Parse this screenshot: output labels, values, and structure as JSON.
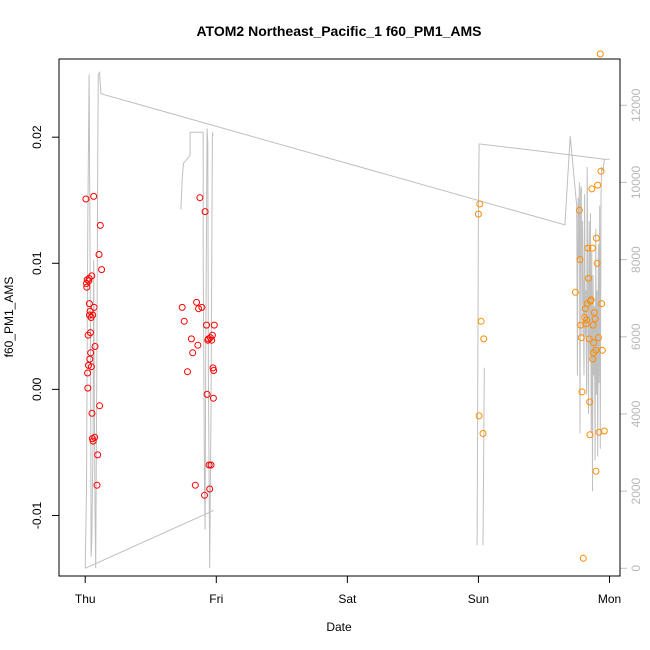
{
  "chart_data": {
    "type": "scatter",
    "title": "ATOM2 Northeast_Pacific_1 f60_PM1_AMS",
    "xlabel": "Date",
    "ylabel": "f60_PM1_AMS",
    "x_ticks": [
      {
        "label": "Thu",
        "day": 0
      },
      {
        "label": "Fri",
        "day": 1
      },
      {
        "label": "Sat",
        "day": 2
      },
      {
        "label": "Sun",
        "day": 3
      },
      {
        "label": "Mon",
        "day": 4
      }
    ],
    "xlim": [
      -0.2,
      4.08
    ],
    "ylim": [
      -0.0148,
      0.0262
    ],
    "y_ticks": [
      -0.01,
      0.0,
      0.01,
      0.02
    ],
    "y_tick_labels": [
      "-0.01",
      "0.00",
      "0.01",
      "0.02"
    ],
    "y2lim": [
      -200,
      13200
    ],
    "y2_ticks": [
      0,
      2000,
      4000,
      6000,
      8000,
      10000,
      12000
    ],
    "y2_tick_labels": [
      "0",
      "2000",
      "4000",
      "6000",
      "8000",
      "10000",
      "12000"
    ],
    "colors": {
      "series_red": "#ff0000",
      "series_orange": "#ff8c00",
      "line": "#bfbfbf",
      "right_axis": "#c0c0c0",
      "axis": "#000000"
    },
    "series": [
      {
        "color_key": "series_red",
        "points": [
          [
            0.005,
            0.0151
          ],
          [
            0.01,
            0.0084
          ],
          [
            0.012,
            0.0081
          ],
          [
            0.015,
            0.0087
          ],
          [
            0.018,
            0.0013
          ],
          [
            0.02,
            0.0001
          ],
          [
            0.022,
            0.0043
          ],
          [
            0.025,
            0.0019
          ],
          [
            0.027,
            0.0086
          ],
          [
            0.03,
            0.0088
          ],
          [
            0.032,
            0.0068
          ],
          [
            0.033,
            0.0059
          ],
          [
            0.035,
            0.0024
          ],
          [
            0.037,
            0.0062
          ],
          [
            0.04,
            0.0045
          ],
          [
            0.042,
            0.0029
          ],
          [
            0.045,
            0.0057
          ],
          [
            0.047,
            0.0018
          ],
          [
            0.05,
            0.009
          ],
          [
            0.052,
            -0.0019
          ],
          [
            0.055,
            -0.0039
          ],
          [
            0.057,
            0.0059
          ],
          [
            0.06,
            -0.0041
          ],
          [
            0.065,
            0.0153
          ],
          [
            0.068,
            0.0065
          ],
          [
            0.072,
            -0.0038
          ],
          [
            0.075,
            0.0034
          ],
          [
            0.09,
            -0.0076
          ],
          [
            0.095,
            -0.0052
          ],
          [
            0.105,
            0.0107
          ],
          [
            0.11,
            -0.0013
          ],
          [
            0.115,
            0.013
          ],
          [
            0.125,
            0.0095
          ],
          [
            0.74,
            0.0065
          ],
          [
            0.755,
            0.0054
          ],
          [
            0.78,
            0.0014
          ],
          [
            0.81,
            0.004
          ],
          [
            0.82,
            0.0029
          ],
          [
            0.84,
            -0.0076
          ],
          [
            0.85,
            0.0069
          ],
          [
            0.86,
            0.0035
          ],
          [
            0.865,
            0.0064
          ],
          [
            0.875,
            0.0152
          ],
          [
            0.89,
            0.0065
          ],
          [
            0.91,
            -0.0084
          ],
          [
            0.915,
            0.0141
          ],
          [
            0.925,
            0.0051
          ],
          [
            0.93,
            -0.0004
          ],
          [
            0.935,
            0.0039
          ],
          [
            0.94,
            0.004
          ],
          [
            0.945,
            -0.006
          ],
          [
            0.95,
            -0.0079
          ],
          [
            0.955,
            0.0041
          ],
          [
            0.96,
            -0.006
          ],
          [
            0.965,
            0.0039
          ],
          [
            0.97,
            0.0043
          ],
          [
            0.975,
            0.0017
          ],
          [
            0.978,
            -0.0007
          ],
          [
            0.98,
            0.0015
          ],
          [
            0.985,
            0.0051
          ]
        ]
      },
      {
        "color_key": "series_orange",
        "points": [
          [
            3.0,
            0.0139
          ],
          [
            3.005,
            -0.0021
          ],
          [
            3.01,
            0.0147
          ],
          [
            3.02,
            0.0054
          ],
          [
            3.035,
            -0.0035
          ],
          [
            3.04,
            0.004
          ],
          [
            3.74,
            0.0077
          ],
          [
            3.77,
            0.0142
          ],
          [
            3.775,
            0.0103
          ],
          [
            3.78,
            0.0051
          ],
          [
            3.785,
            0.0041
          ],
          [
            3.79,
            -0.0002
          ],
          [
            3.8,
            -0.0134
          ],
          [
            3.81,
            0.0057
          ],
          [
            3.815,
            0.0064
          ],
          [
            3.82,
            0.0052
          ],
          [
            3.825,
            0.0055
          ],
          [
            3.83,
            0.0068
          ],
          [
            3.835,
            0.0112
          ],
          [
            3.84,
            0.0088
          ],
          [
            3.845,
            0.004
          ],
          [
            3.848,
            -0.001
          ],
          [
            3.85,
            -0.0036
          ],
          [
            3.855,
            0.007
          ],
          [
            3.86,
            0.0071
          ],
          [
            3.865,
            0.0159
          ],
          [
            3.87,
            0.0112
          ],
          [
            3.872,
            0.0024
          ],
          [
            3.875,
            0.0051
          ],
          [
            3.878,
            0.0029
          ],
          [
            3.88,
            0.0037
          ],
          [
            3.885,
            0.0061
          ],
          [
            3.89,
            0.0056
          ],
          [
            3.895,
            0.0031
          ],
          [
            3.897,
            -0.0065
          ],
          [
            3.9,
            0.012
          ],
          [
            3.905,
            0.01
          ],
          [
            3.91,
            0.0162
          ],
          [
            3.915,
            0.0041
          ],
          [
            3.92,
            -0.0034
          ],
          [
            3.93,
            0.0266
          ],
          [
            3.935,
            0.0173
          ],
          [
            3.94,
            0.0068
          ],
          [
            3.945,
            0.0031
          ],
          [
            3.96,
            -0.0033
          ]
        ]
      }
    ],
    "secondary_line": {
      "color_key": "line",
      "segments": [
        [
          [
            0.0,
            0
          ],
          [
            0.01,
            2000
          ],
          [
            0.02,
            9000
          ],
          [
            0.03,
            12800
          ],
          [
            0.04,
            6000
          ],
          [
            0.045,
            300
          ],
          [
            0.05,
            700
          ],
          [
            0.06,
            3500
          ],
          [
            0.065,
            8000
          ],
          [
            0.07,
            4000
          ],
          [
            0.075,
            1500
          ],
          [
            0.08,
            0
          ],
          [
            0.09,
            6000
          ],
          [
            0.095,
            10500
          ],
          [
            0.1,
            12800
          ],
          [
            0.11,
            12850
          ],
          [
            0.12,
            12300
          ],
          [
            3.66,
            8900
          ],
          [
            3.7,
            11200
          ],
          [
            3.75,
            9400
          ],
          [
            3.755,
            5000
          ],
          [
            3.76,
            9600
          ],
          [
            3.765,
            8000
          ],
          [
            3.77,
            10000
          ],
          [
            3.775,
            3500
          ],
          [
            3.78,
            9800
          ],
          [
            3.785,
            9900
          ],
          [
            3.79,
            6000
          ],
          [
            3.795,
            9000
          ],
          [
            3.8,
            7000
          ],
          [
            3.805,
            5000
          ],
          [
            3.81,
            9700
          ],
          [
            3.815,
            6000
          ],
          [
            3.82,
            7200
          ],
          [
            3.825,
            4500
          ],
          [
            3.83,
            10400
          ],
          [
            3.835,
            7000
          ],
          [
            3.84,
            4000
          ],
          [
            3.845,
            9000
          ],
          [
            3.85,
            5500
          ],
          [
            3.855,
            9200
          ],
          [
            3.86,
            3500
          ],
          [
            3.865,
            8200
          ],
          [
            3.87,
            2000
          ],
          [
            3.875,
            7600
          ],
          [
            3.88,
            5000
          ],
          [
            3.885,
            6800
          ],
          [
            3.89,
            2800
          ],
          [
            3.895,
            8800
          ],
          [
            3.9,
            4500
          ],
          [
            3.905,
            7200
          ],
          [
            3.91,
            2900
          ],
          [
            3.915,
            8400
          ],
          [
            3.92,
            4800
          ],
          [
            3.925,
            9400
          ],
          [
            3.93,
            3100
          ],
          [
            3.935,
            9600
          ],
          [
            3.94,
            10400
          ],
          [
            3.95,
            10300
          ],
          [
            3.96,
            10600
          ],
          [
            4.0,
            10600
          ]
        ],
        [
          [
            0.0,
            0
          ],
          [
            0.98,
            1500
          ]
        ],
        [
          [
            0.73,
            9300
          ],
          [
            0.74,
            10100
          ],
          [
            0.75,
            10500
          ],
          [
            0.8,
            10700
          ],
          [
            0.8,
            11300
          ],
          [
            0.9,
            11300
          ],
          [
            0.9,
            8000
          ],
          [
            0.91,
            2000
          ],
          [
            0.915,
            1000
          ],
          [
            0.92,
            6000
          ],
          [
            0.93,
            11400
          ],
          [
            0.935,
            11000
          ],
          [
            0.94,
            5000
          ],
          [
            0.95,
            0
          ],
          [
            0.96,
            4000
          ],
          [
            0.97,
            11300
          ],
          [
            0.975,
            11200
          ]
        ],
        [
          [
            2.99,
            600
          ],
          [
            3.0,
            9000
          ],
          [
            3.005,
            11000
          ],
          [
            3.5,
            10800
          ],
          [
            3.96,
            10600
          ]
        ],
        [
          [
            3.035,
            600
          ],
          [
            3.04,
            3000
          ],
          [
            3.045,
            5200
          ]
        ]
      ]
    }
  }
}
